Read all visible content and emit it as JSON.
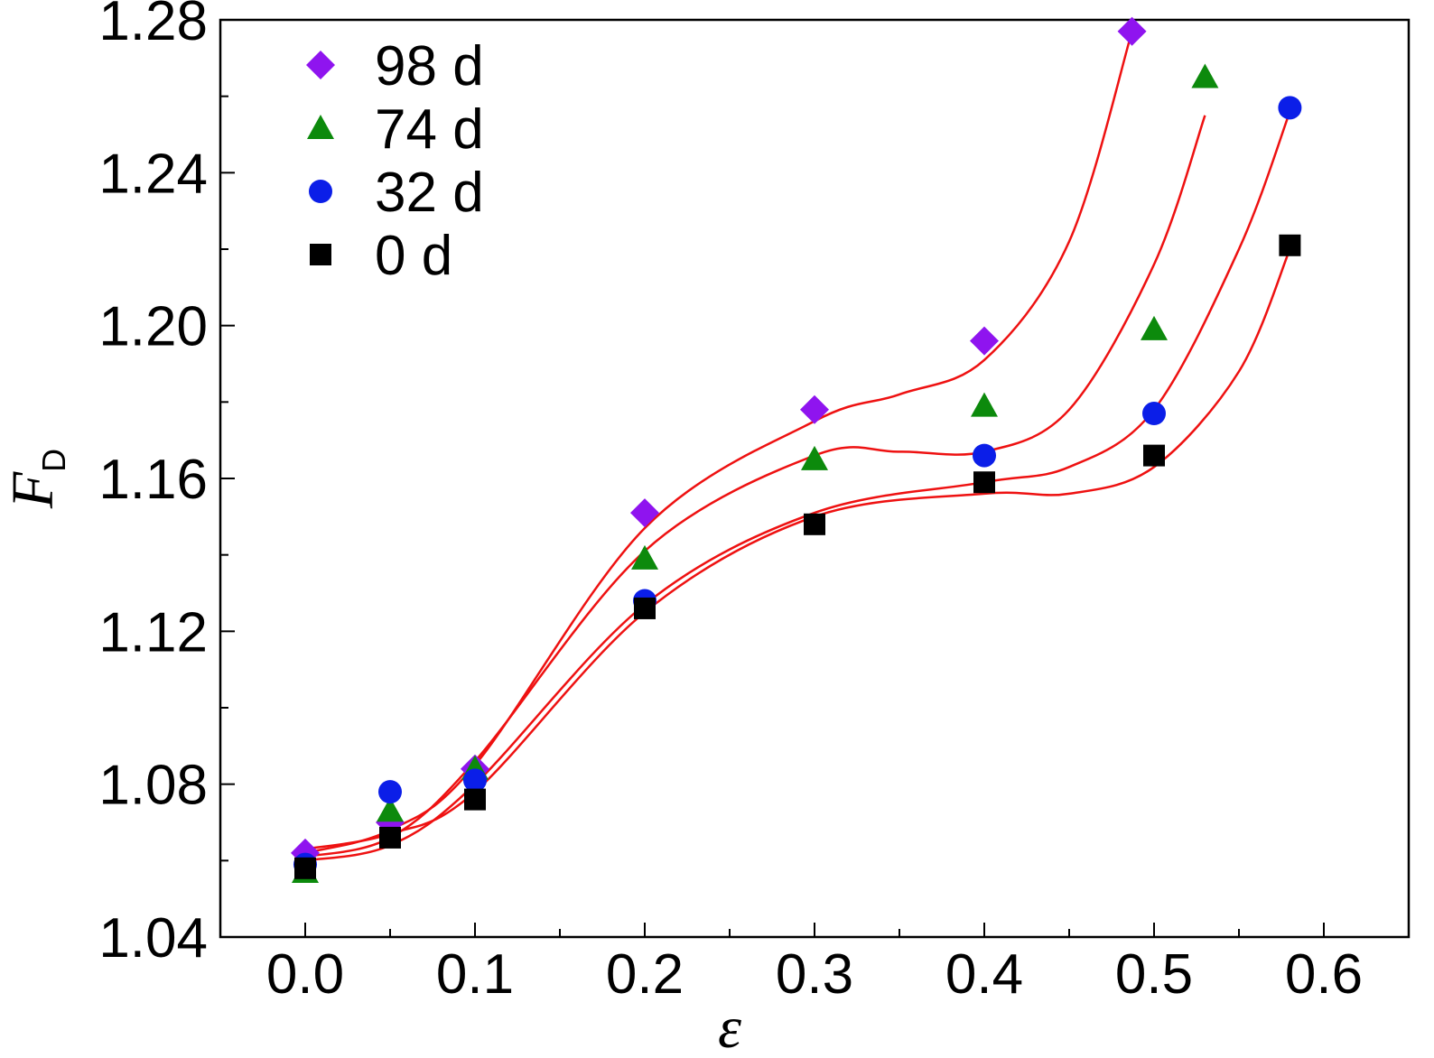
{
  "chart_data": {
    "type": "scatter",
    "title": "",
    "xlabel": "ε",
    "ylabel": "F",
    "ylabel_subscript": "D",
    "xlim": [
      -0.05,
      0.65
    ],
    "ylim": [
      1.04,
      1.28
    ],
    "xticks": [
      0.0,
      0.1,
      0.2,
      0.3,
      0.4,
      0.5,
      0.6
    ],
    "xtick_labels": [
      "0.0",
      "0.1",
      "0.2",
      "0.3",
      "0.4",
      "0.5",
      "0.6"
    ],
    "yticks": [
      1.04,
      1.08,
      1.12,
      1.16,
      1.2,
      1.24,
      1.28
    ],
    "ytick_labels": [
      "1.04",
      "1.08",
      "1.12",
      "1.16",
      "1.20",
      "1.24",
      "1.28"
    ],
    "grid": false,
    "legend_position": "top-left",
    "fit_line_color": "#ee1111",
    "series": [
      {
        "name": "98 d",
        "marker": "diamond",
        "color": "#8f14ef",
        "x": [
          0.0,
          0.05,
          0.1,
          0.2,
          0.3,
          0.4,
          0.487
        ],
        "y": [
          1.062,
          1.07,
          1.084,
          1.151,
          1.178,
          1.196,
          1.277
        ],
        "fit": {
          "x": [
            0.0,
            0.05,
            0.1,
            0.2,
            0.3,
            0.35,
            0.4,
            0.45,
            0.487
          ],
          "y": [
            1.062,
            1.068,
            1.085,
            1.147,
            1.175,
            1.182,
            1.191,
            1.222,
            1.277
          ]
        }
      },
      {
        "name": "74 d",
        "marker": "triangle",
        "color": "#0c8a0c",
        "x": [
          0.0,
          0.05,
          0.1,
          0.2,
          0.3,
          0.4,
          0.5,
          0.53
        ],
        "y": [
          1.057,
          1.073,
          1.084,
          1.139,
          1.165,
          1.179,
          1.199,
          1.265
        ],
        "fit": {
          "x": [
            0.0,
            0.05,
            0.1,
            0.2,
            0.3,
            0.35,
            0.4,
            0.45,
            0.5,
            0.53
          ],
          "y": [
            1.061,
            1.066,
            1.086,
            1.141,
            1.166,
            1.167,
            1.167,
            1.178,
            1.216,
            1.255
          ]
        }
      },
      {
        "name": "32 d",
        "marker": "circle",
        "color": "#0b1ee8",
        "x": [
          0.0,
          0.05,
          0.1,
          0.2,
          0.4,
          0.5,
          0.58
        ],
        "y": [
          1.059,
          1.078,
          1.081,
          1.128,
          1.166,
          1.177,
          1.257
        ],
        "fit": {
          "x": [
            0.0,
            0.05,
            0.1,
            0.2,
            0.3,
            0.4,
            0.45,
            0.5,
            0.55,
            0.58
          ],
          "y": [
            1.06,
            1.064,
            1.08,
            1.127,
            1.151,
            1.159,
            1.163,
            1.178,
            1.22,
            1.256
          ]
        }
      },
      {
        "name": "0 d",
        "marker": "square",
        "color": "#000000",
        "x": [
          0.0,
          0.05,
          0.1,
          0.2,
          0.3,
          0.4,
          0.5,
          0.58
        ],
        "y": [
          1.058,
          1.066,
          1.076,
          1.126,
          1.148,
          1.159,
          1.166,
          1.221
        ],
        "fit": {
          "x": [
            0.0,
            0.05,
            0.1,
            0.2,
            0.3,
            0.4,
            0.45,
            0.5,
            0.55,
            0.58
          ],
          "y": [
            1.063,
            1.067,
            1.078,
            1.125,
            1.15,
            1.156,
            1.156,
            1.163,
            1.188,
            1.22
          ]
        }
      }
    ]
  }
}
